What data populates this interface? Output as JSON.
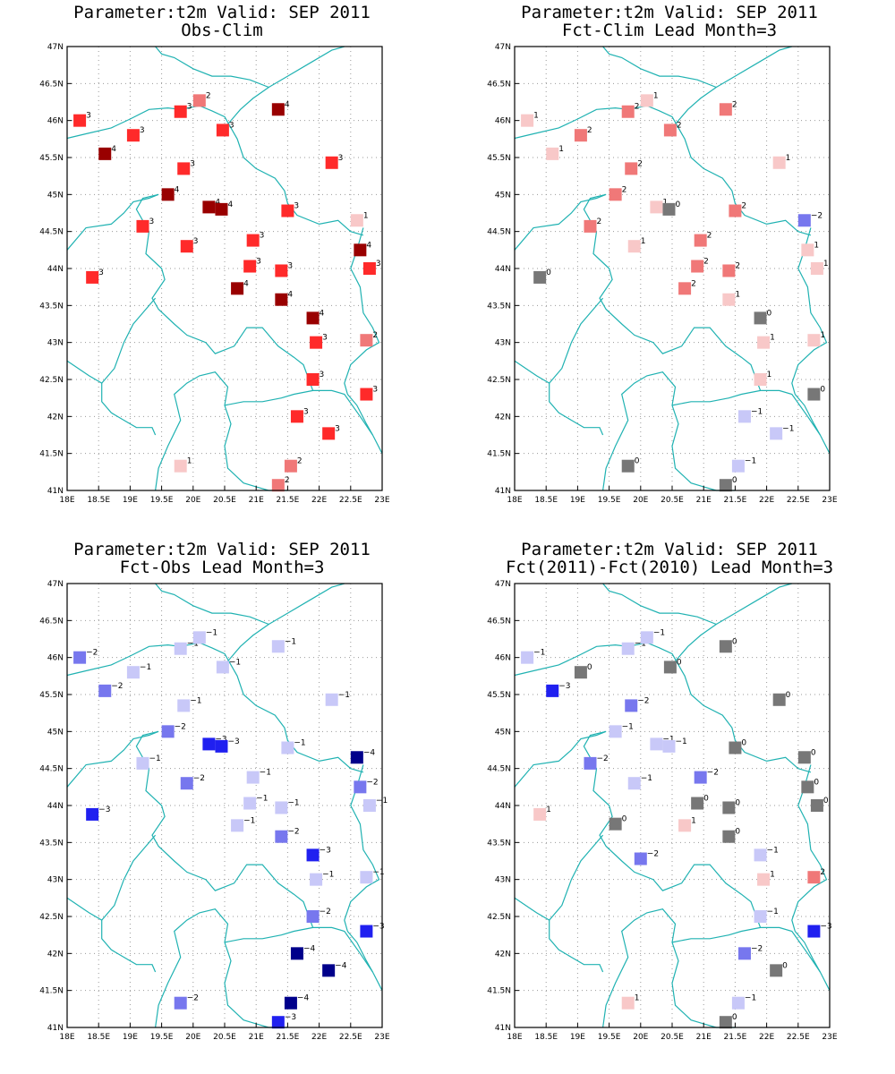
{
  "axes": {
    "lon_min": 18,
    "lon_max": 23,
    "lat_min": 41,
    "lat_max": 47,
    "xticks": [
      "18E",
      "18.5E",
      "19E",
      "19.5E",
      "20E",
      "20.5E",
      "21E",
      "21.5E",
      "22E",
      "22.5E",
      "23E"
    ],
    "yticks": [
      "41N",
      "41.5N",
      "42N",
      "42.5N",
      "43N",
      "43.5N",
      "44N",
      "44.5N",
      "45N",
      "45.5N",
      "46N",
      "46.5N",
      "47N"
    ],
    "grid": true
  },
  "colors": {
    "-4": "#00008b",
    "-3": "#2020f0",
    "-2": "#7777ee",
    "-1": "#c8c8f8",
    "0": "#777777",
    "1": "#f8c8c8",
    "2": "#f07878",
    "3": "#ff2a2a",
    "4": "#990000",
    "border": "#20b2b2"
  },
  "chart_data": [
    {
      "type": "scatter",
      "title": "Parameter:t2m Valid: SEP 2011",
      "subtitle": "Obs-Clim",
      "points": [
        {
          "lon": 18.2,
          "lat": 46.0,
          "v": 3
        },
        {
          "lon": 19.05,
          "lat": 45.8,
          "v": 3
        },
        {
          "lon": 19.8,
          "lat": 46.12,
          "v": 3
        },
        {
          "lon": 20.1,
          "lat": 46.27,
          "v": 2
        },
        {
          "lon": 20.47,
          "lat": 45.87,
          "v": 3
        },
        {
          "lon": 21.35,
          "lat": 46.15,
          "v": 4
        },
        {
          "lon": 18.6,
          "lat": 45.55,
          "v": 4
        },
        {
          "lon": 19.85,
          "lat": 45.35,
          "v": 3
        },
        {
          "lon": 22.2,
          "lat": 45.43,
          "v": 3
        },
        {
          "lon": 19.6,
          "lat": 45.0,
          "v": 4
        },
        {
          "lon": 20.25,
          "lat": 44.83,
          "v": 4
        },
        {
          "lon": 20.45,
          "lat": 44.8,
          "v": 4
        },
        {
          "lon": 21.5,
          "lat": 44.78,
          "v": 3
        },
        {
          "lon": 22.6,
          "lat": 44.65,
          "v": 1
        },
        {
          "lon": 19.2,
          "lat": 44.57,
          "v": 3
        },
        {
          "lon": 19.9,
          "lat": 44.3,
          "v": 3
        },
        {
          "lon": 20.95,
          "lat": 44.38,
          "v": 3
        },
        {
          "lon": 22.65,
          "lat": 44.25,
          "v": 4
        },
        {
          "lon": 20.9,
          "lat": 44.03,
          "v": 3
        },
        {
          "lon": 21.4,
          "lat": 43.97,
          "v": 3
        },
        {
          "lon": 22.8,
          "lat": 44.0,
          "v": 3
        },
        {
          "lon": 18.4,
          "lat": 43.88,
          "v": 3
        },
        {
          "lon": 20.7,
          "lat": 43.73,
          "v": 4
        },
        {
          "lon": 21.4,
          "lat": 43.58,
          "v": 4
        },
        {
          "lon": 21.9,
          "lat": 43.33,
          "v": 4
        },
        {
          "lon": 21.95,
          "lat": 43.0,
          "v": 3
        },
        {
          "lon": 22.75,
          "lat": 43.03,
          "v": 2
        },
        {
          "lon": 21.9,
          "lat": 42.5,
          "v": 3
        },
        {
          "lon": 22.75,
          "lat": 42.3,
          "v": 3
        },
        {
          "lon": 21.65,
          "lat": 42.0,
          "v": 3
        },
        {
          "lon": 22.15,
          "lat": 41.77,
          "v": 3
        },
        {
          "lon": 19.8,
          "lat": 41.33,
          "v": 1
        },
        {
          "lon": 21.55,
          "lat": 41.33,
          "v": 2
        },
        {
          "lon": 21.35,
          "lat": 41.07,
          "v": 2
        }
      ]
    },
    {
      "type": "scatter",
      "title": "Parameter:t2m Valid: SEP 2011",
      "subtitle": "Fct-Clim Lead Month=3",
      "points": [
        {
          "lon": 18.2,
          "lat": 46.0,
          "v": 1
        },
        {
          "lon": 19.05,
          "lat": 45.8,
          "v": 2
        },
        {
          "lon": 19.8,
          "lat": 46.12,
          "v": 2
        },
        {
          "lon": 20.1,
          "lat": 46.27,
          "v": 1
        },
        {
          "lon": 20.47,
          "lat": 45.87,
          "v": 2
        },
        {
          "lon": 21.35,
          "lat": 46.15,
          "v": 2
        },
        {
          "lon": 18.6,
          "lat": 45.55,
          "v": 1
        },
        {
          "lon": 19.85,
          "lat": 45.35,
          "v": 2
        },
        {
          "lon": 22.2,
          "lat": 45.43,
          "v": 1
        },
        {
          "lon": 19.6,
          "lat": 45.0,
          "v": 2
        },
        {
          "lon": 20.25,
          "lat": 44.83,
          "v": 1
        },
        {
          "lon": 20.45,
          "lat": 44.8,
          "v": 0
        },
        {
          "lon": 21.5,
          "lat": 44.78,
          "v": 2
        },
        {
          "lon": 22.6,
          "lat": 44.65,
          "v": -2
        },
        {
          "lon": 19.2,
          "lat": 44.57,
          "v": 2
        },
        {
          "lon": 19.9,
          "lat": 44.3,
          "v": 1
        },
        {
          "lon": 20.95,
          "lat": 44.38,
          "v": 2
        },
        {
          "lon": 22.65,
          "lat": 44.25,
          "v": 1
        },
        {
          "lon": 20.9,
          "lat": 44.03,
          "v": 2
        },
        {
          "lon": 21.4,
          "lat": 43.97,
          "v": 2
        },
        {
          "lon": 22.8,
          "lat": 44.0,
          "v": 1
        },
        {
          "lon": 18.4,
          "lat": 43.88,
          "v": 0
        },
        {
          "lon": 20.7,
          "lat": 43.73,
          "v": 2
        },
        {
          "lon": 21.4,
          "lat": 43.58,
          "v": 1
        },
        {
          "lon": 21.9,
          "lat": 43.33,
          "v": 0
        },
        {
          "lon": 21.95,
          "lat": 43.0,
          "v": 1
        },
        {
          "lon": 22.75,
          "lat": 43.03,
          "v": 1
        },
        {
          "lon": 21.9,
          "lat": 42.5,
          "v": 1
        },
        {
          "lon": 22.75,
          "lat": 42.3,
          "v": 0
        },
        {
          "lon": 21.65,
          "lat": 42.0,
          "v": -1
        },
        {
          "lon": 22.15,
          "lat": 41.77,
          "v": -1
        },
        {
          "lon": 19.8,
          "lat": 41.33,
          "v": 0
        },
        {
          "lon": 21.55,
          "lat": 41.33,
          "v": -1
        },
        {
          "lon": 21.35,
          "lat": 41.07,
          "v": 0
        }
      ]
    },
    {
      "type": "scatter",
      "title": "Parameter:t2m Valid: SEP 2011",
      "subtitle": "Fct-Obs Lead Month=3",
      "points": [
        {
          "lon": 18.2,
          "lat": 46.0,
          "v": -2
        },
        {
          "lon": 19.05,
          "lat": 45.8,
          "v": -1
        },
        {
          "lon": 19.8,
          "lat": 46.12,
          "v": -1
        },
        {
          "lon": 20.1,
          "lat": 46.27,
          "v": -1
        },
        {
          "lon": 20.47,
          "lat": 45.87,
          "v": -1
        },
        {
          "lon": 21.35,
          "lat": 46.15,
          "v": -1
        },
        {
          "lon": 18.6,
          "lat": 45.55,
          "v": -2
        },
        {
          "lon": 19.85,
          "lat": 45.35,
          "v": -1
        },
        {
          "lon": 22.2,
          "lat": 45.43,
          "v": -1
        },
        {
          "lon": 19.6,
          "lat": 45.0,
          "v": -2
        },
        {
          "lon": 20.25,
          "lat": 44.83,
          "v": -3
        },
        {
          "lon": 20.45,
          "lat": 44.8,
          "v": -3
        },
        {
          "lon": 21.5,
          "lat": 44.78,
          "v": -1
        },
        {
          "lon": 22.6,
          "lat": 44.65,
          "v": -4
        },
        {
          "lon": 19.2,
          "lat": 44.57,
          "v": -1
        },
        {
          "lon": 19.9,
          "lat": 44.3,
          "v": -2
        },
        {
          "lon": 20.95,
          "lat": 44.38,
          "v": -1
        },
        {
          "lon": 22.65,
          "lat": 44.25,
          "v": -2
        },
        {
          "lon": 20.9,
          "lat": 44.03,
          "v": -1
        },
        {
          "lon": 21.4,
          "lat": 43.97,
          "v": -1
        },
        {
          "lon": 22.8,
          "lat": 44.0,
          "v": -1
        },
        {
          "lon": 18.4,
          "lat": 43.88,
          "v": -3
        },
        {
          "lon": 20.7,
          "lat": 43.73,
          "v": -1
        },
        {
          "lon": 21.4,
          "lat": 43.58,
          "v": -2
        },
        {
          "lon": 21.9,
          "lat": 43.33,
          "v": -3
        },
        {
          "lon": 21.95,
          "lat": 43.0,
          "v": -1
        },
        {
          "lon": 22.75,
          "lat": 43.03,
          "v": -1
        },
        {
          "lon": 21.9,
          "lat": 42.5,
          "v": -2
        },
        {
          "lon": 22.75,
          "lat": 42.3,
          "v": -3
        },
        {
          "lon": 21.65,
          "lat": 42.0,
          "v": -4
        },
        {
          "lon": 22.15,
          "lat": 41.77,
          "v": -4
        },
        {
          "lon": 19.8,
          "lat": 41.33,
          "v": -2
        },
        {
          "lon": 21.55,
          "lat": 41.33,
          "v": -4
        },
        {
          "lon": 21.35,
          "lat": 41.07,
          "v": -3
        }
      ]
    },
    {
      "type": "scatter",
      "title": "Parameter:t2m Valid: SEP 2011",
      "subtitle": "Fct(2011)-Fct(2010) Lead Month=3",
      "points": [
        {
          "lon": 18.2,
          "lat": 46.0,
          "v": -1
        },
        {
          "lon": 19.05,
          "lat": 45.8,
          "v": 0
        },
        {
          "lon": 19.8,
          "lat": 46.12,
          "v": -1
        },
        {
          "lon": 20.1,
          "lat": 46.27,
          "v": -1
        },
        {
          "lon": 20.47,
          "lat": 45.87,
          "v": 0
        },
        {
          "lon": 21.35,
          "lat": 46.15,
          "v": 0
        },
        {
          "lon": 18.6,
          "lat": 45.55,
          "v": -3
        },
        {
          "lon": 19.85,
          "lat": 45.35,
          "v": -2
        },
        {
          "lon": 22.2,
          "lat": 45.43,
          "v": 0
        },
        {
          "lon": 19.6,
          "lat": 45.0,
          "v": -1
        },
        {
          "lon": 20.25,
          "lat": 44.83,
          "v": -1
        },
        {
          "lon": 20.45,
          "lat": 44.8,
          "v": -1
        },
        {
          "lon": 21.5,
          "lat": 44.78,
          "v": 0
        },
        {
          "lon": 22.6,
          "lat": 44.65,
          "v": 0
        },
        {
          "lon": 19.2,
          "lat": 44.57,
          "v": -2
        },
        {
          "lon": 19.9,
          "lat": 44.3,
          "v": -1
        },
        {
          "lon": 20.95,
          "lat": 44.38,
          "v": -2
        },
        {
          "lon": 22.65,
          "lat": 44.25,
          "v": 0
        },
        {
          "lon": 20.9,
          "lat": 44.03,
          "v": 0
        },
        {
          "lon": 21.4,
          "lat": 43.97,
          "v": 0
        },
        {
          "lon": 22.8,
          "lat": 44.0,
          "v": 0
        },
        {
          "lon": 18.4,
          "lat": 43.88,
          "v": 1
        },
        {
          "lon": 20.7,
          "lat": 43.73,
          "v": 1
        },
        {
          "lon": 21.4,
          "lat": 43.58,
          "v": 0
        },
        {
          "lon": 19.6,
          "lat": 43.75,
          "v": 0
        },
        {
          "lon": 20.0,
          "lat": 43.28,
          "v": -2
        },
        {
          "lon": 21.9,
          "lat": 43.33,
          "v": -1
        },
        {
          "lon": 21.95,
          "lat": 43.0,
          "v": 1
        },
        {
          "lon": 22.75,
          "lat": 43.03,
          "v": 2
        },
        {
          "lon": 21.9,
          "lat": 42.5,
          "v": -1
        },
        {
          "lon": 22.75,
          "lat": 42.3,
          "v": -3
        },
        {
          "lon": 21.65,
          "lat": 42.0,
          "v": -2
        },
        {
          "lon": 22.15,
          "lat": 41.77,
          "v": 0
        },
        {
          "lon": 19.8,
          "lat": 41.33,
          "v": 1
        },
        {
          "lon": 21.55,
          "lat": 41.33,
          "v": -1
        },
        {
          "lon": 21.35,
          "lat": 41.07,
          "v": 0
        }
      ]
    }
  ]
}
